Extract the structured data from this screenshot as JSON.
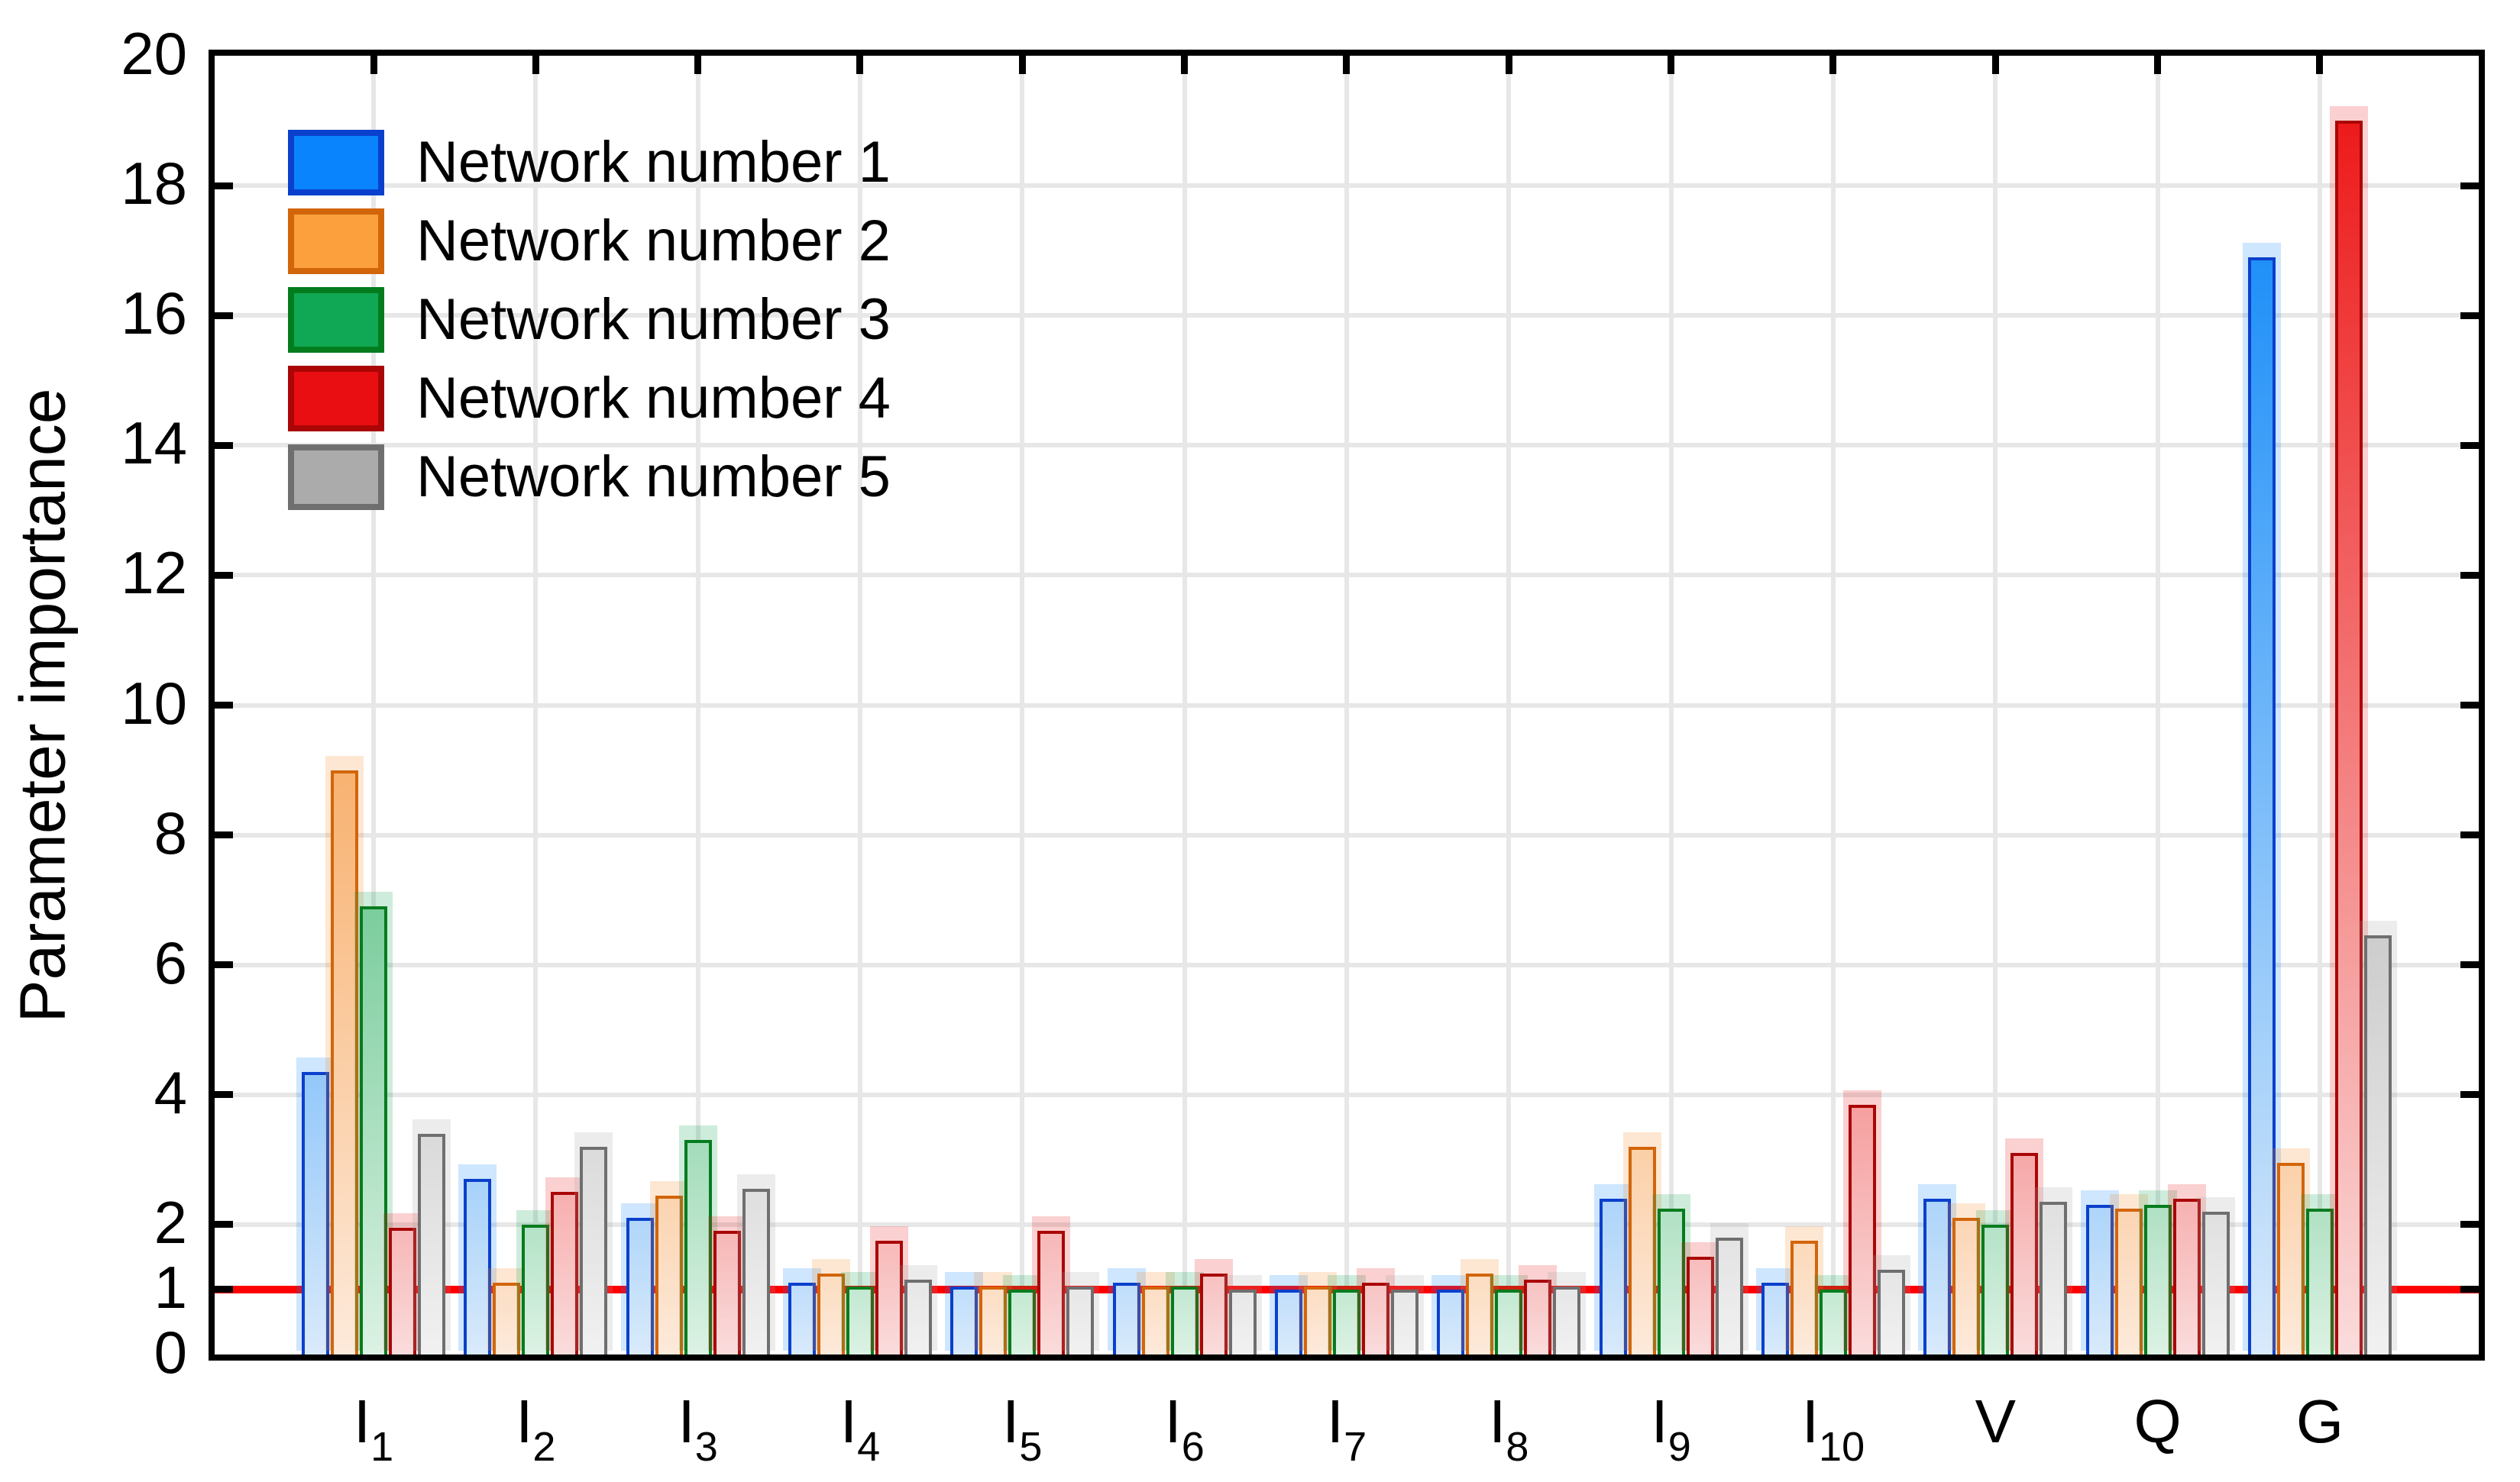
{
  "figure": {
    "background": "#ffffff",
    "axis_color": "#000000",
    "grid_color": "#e7e7e7",
    "threshold_color": "#ff0000",
    "y_tick_labels": [
      "20",
      "18",
      "16",
      "14",
      "12",
      "10",
      "8",
      "6",
      "4",
      "2",
      "1",
      "0"
    ],
    "y_tick_values": [
      20,
      18,
      16,
      14,
      12,
      10,
      8,
      6,
      4,
      2,
      1,
      0
    ]
  },
  "chart_data": {
    "type": "bar",
    "title": "",
    "xlabel": "",
    "ylabel": "Parameter importance",
    "ylim": [
      0,
      20
    ],
    "grid": "both",
    "legend_position": "top-left",
    "threshold_line": 1,
    "categories": [
      {
        "main": "I",
        "sub": "1"
      },
      {
        "main": "I",
        "sub": "2"
      },
      {
        "main": "I",
        "sub": "3"
      },
      {
        "main": "I",
        "sub": "4"
      },
      {
        "main": "I",
        "sub": "5"
      },
      {
        "main": "I",
        "sub": "6"
      },
      {
        "main": "I",
        "sub": "7"
      },
      {
        "main": "I",
        "sub": "8"
      },
      {
        "main": "I",
        "sub": "9"
      },
      {
        "main": "I",
        "sub": "10"
      },
      {
        "main": "V",
        "sub": ""
      },
      {
        "main": "Q",
        "sub": ""
      },
      {
        "main": "G",
        "sub": ""
      }
    ],
    "series": [
      {
        "name": "Network number 1",
        "legend_fill": "#0a84fc",
        "strong": "#0884f8",
        "pale": "#d9eafb",
        "border": "#0a40cc",
        "values": [
          4.35,
          2.7,
          2.1,
          1.1,
          1.05,
          1.1,
          1.0,
          1.0,
          2.4,
          1.1,
          2.4,
          2.3,
          16.9
        ]
      },
      {
        "name": "Network number 2",
        "legend_fill": "#fba03c",
        "strong": "#f5871e",
        "pale": "#fdeadb",
        "border": "#d2650a",
        "values": [
          9.0,
          1.1,
          2.45,
          1.25,
          1.05,
          1.05,
          1.05,
          1.25,
          3.2,
          1.75,
          2.1,
          2.25,
          2.95
        ]
      },
      {
        "name": "Network number 3",
        "legend_fill": "#10a854",
        "strong": "#0ba24c",
        "pale": "#dcf2e4",
        "border": "#047c1e",
        "values": [
          6.9,
          2.0,
          3.3,
          1.05,
          1.0,
          1.05,
          1.0,
          1.0,
          2.25,
          1.0,
          2.0,
          2.3,
          2.25
        ]
      },
      {
        "name": "Network number 4",
        "legend_fill": "#e90e11",
        "strong": "#ec1414",
        "pale": "#fadcdc",
        "border": "#aa0606",
        "values": [
          1.95,
          2.5,
          1.9,
          1.75,
          1.9,
          1.25,
          1.1,
          1.15,
          1.5,
          3.85,
          3.1,
          2.4,
          19.0
        ]
      },
      {
        "name": "Network number 5",
        "legend_fill": "#ababab",
        "strong": "#a0a0a0",
        "pale": "#f1f1f1",
        "border": "#6f6f6f",
        "values": [
          3.4,
          3.2,
          2.55,
          1.15,
          1.05,
          1.0,
          1.0,
          1.05,
          1.8,
          1.3,
          2.35,
          2.2,
          6.45
        ]
      }
    ]
  }
}
